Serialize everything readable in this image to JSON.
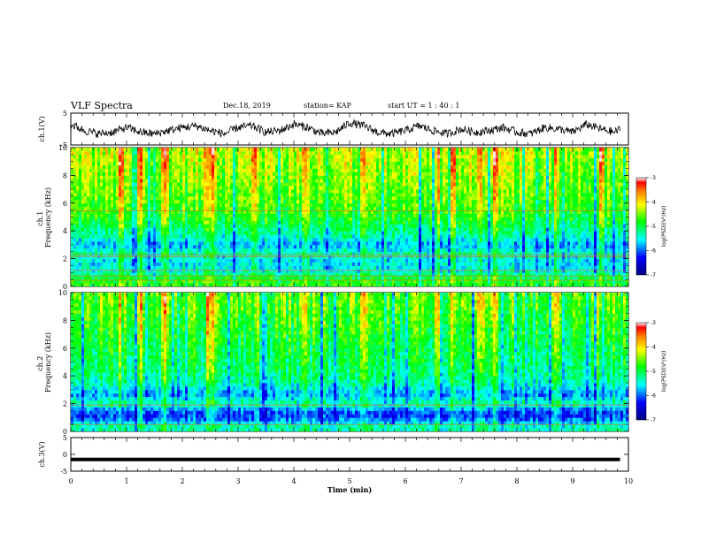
{
  "header": {
    "title": "VLF Spectra",
    "date": "Dec.18, 2019",
    "station": "station= KAP",
    "start": "start  UT =   1 : 40 : 1"
  },
  "chart_data": [
    {
      "type": "line",
      "panel": "ch1-waveform",
      "ylabel": "ch.1(V)",
      "ylim": [
        -5,
        5
      ],
      "yticks": [
        "5",
        "-5"
      ],
      "xlim": [
        0,
        10
      ],
      "color": "#000000",
      "x": [
        0,
        0.25,
        0.5,
        0.75,
        1.0,
        1.25,
        1.5,
        1.75,
        2.0,
        2.25,
        2.5,
        2.75,
        3.0,
        3.25,
        3.5,
        3.75,
        4.0,
        4.25,
        4.5,
        4.75,
        5.0,
        5.25,
        5.5,
        5.75,
        6.0,
        6.25,
        6.5,
        6.75,
        7.0,
        7.25,
        7.5,
        7.75,
        8.0,
        8.25,
        8.5,
        8.75,
        9.0,
        9.25,
        9.5,
        9.75,
        9.85
      ],
      "y": [
        1.5,
        -0.5,
        -1.5,
        -1.0,
        0.5,
        -1.0,
        -1.5,
        -0.5,
        0.5,
        1.0,
        -0.5,
        -1.5,
        0.5,
        1.0,
        -1.0,
        -0.5,
        1.5,
        0.5,
        -1.5,
        -1.0,
        2.0,
        1.0,
        -1.0,
        -1.5,
        -0.5,
        1.0,
        -0.5,
        -1.5,
        0.0,
        -1.0,
        -0.5,
        0.5,
        -1.0,
        -1.5,
        0.5,
        0.0,
        -1.0,
        1.5,
        0.0,
        -1.0,
        0.0
      ]
    },
    {
      "type": "heatmap",
      "panel": "ch1-spectrogram",
      "ylabel": "ch.1\nFrequency (kHz)",
      "ylim": [
        0,
        10
      ],
      "yticks": [
        "0",
        "2",
        "4",
        "6",
        "8",
        "10"
      ],
      "xlim": [
        0,
        10
      ],
      "colorbar": {
        "label": "log(PSD)(V²/Hz)",
        "range": [
          -7,
          -3
        ],
        "ticks": [
          "-3",
          "-4",
          "-5",
          "-6",
          "-7"
        ]
      },
      "hot_times_min": [
        0.9,
        1.25,
        1.7,
        2.45,
        2.55,
        3.3,
        4.2,
        5.25,
        6.6,
        6.85,
        7.35,
        7.6,
        8.7,
        9.5
      ],
      "band_profile": [
        {
          "f_khz": 9.5,
          "level": -4.3
        },
        {
          "f_khz": 8.5,
          "level": -4.4
        },
        {
          "f_khz": 7.5,
          "level": -4.5
        },
        {
          "f_khz": 6.5,
          "level": -4.6
        },
        {
          "f_khz": 5.5,
          "level": -4.7
        },
        {
          "f_khz": 4.5,
          "level": -5.0
        },
        {
          "f_khz": 3.5,
          "level": -5.4
        },
        {
          "f_khz": 3.0,
          "level": -5.8
        },
        {
          "f_khz": 2.4,
          "level": -5.3
        },
        {
          "f_khz": 1.8,
          "level": -5.6
        },
        {
          "f_khz": 1.2,
          "level": -5.5
        },
        {
          "f_khz": 0.5,
          "level": -4.8
        }
      ],
      "lines_khz": [
        5.45,
        2.3,
        2.15,
        1.15,
        0.75,
        0.45
      ]
    },
    {
      "type": "heatmap",
      "panel": "ch2-spectrogram",
      "ylabel": "ch.2\nFrequency (kHz)",
      "ylim": [
        0,
        10
      ],
      "yticks": [
        "0",
        "2",
        "4",
        "6",
        "8",
        "10"
      ],
      "xlim": [
        0,
        10
      ],
      "colorbar": {
        "label": "log(PSD)(V²/Hz)",
        "range": [
          -7,
          -3
        ],
        "ticks": [
          "-3",
          "-4",
          "-5",
          "-6",
          "-7"
        ]
      },
      "hot_times_min": [
        0.9,
        1.25,
        1.7,
        2.45,
        2.55,
        3.3,
        4.2,
        5.25,
        6.6,
        6.85,
        7.35,
        7.6,
        8.7,
        9.5
      ],
      "band_profile": [
        {
          "f_khz": 9.5,
          "level": -4.6
        },
        {
          "f_khz": 8.5,
          "level": -4.7
        },
        {
          "f_khz": 7.5,
          "level": -4.8
        },
        {
          "f_khz": 6.5,
          "level": -4.9
        },
        {
          "f_khz": 5.5,
          "level": -5.0
        },
        {
          "f_khz": 4.5,
          "level": -5.1
        },
        {
          "f_khz": 3.5,
          "level": -5.3
        },
        {
          "f_khz": 2.7,
          "level": -5.8
        },
        {
          "f_khz": 2.0,
          "level": -5.2
        },
        {
          "f_khz": 1.5,
          "level": -6.0
        },
        {
          "f_khz": 1.0,
          "level": -6.1
        },
        {
          "f_khz": 0.4,
          "level": -5.3
        }
      ],
      "lines_khz": [
        1.9,
        0.5
      ]
    },
    {
      "type": "line",
      "panel": "ch3-waveform",
      "ylabel": "ch.3(V)",
      "ylim": [
        -5,
        5
      ],
      "yticks": [
        "5",
        "0",
        "-5"
      ],
      "xlim": [
        0,
        10
      ],
      "color": "#000000",
      "x": [
        0,
        9.85
      ],
      "y": [
        -1.5,
        -1.5
      ]
    }
  ],
  "xaxis": {
    "label": "Time (min)",
    "ticks": [
      "0",
      "1",
      "2",
      "3",
      "4",
      "5",
      "6",
      "7",
      "8",
      "9",
      "10"
    ]
  },
  "colors": {
    "waveform": "#000000",
    "colormap": [
      "#00007f",
      "#0000ff",
      "#00ffff",
      "#00ff00",
      "#ffff00",
      "#ff7f00",
      "#ff0000",
      "#ffffff"
    ]
  }
}
